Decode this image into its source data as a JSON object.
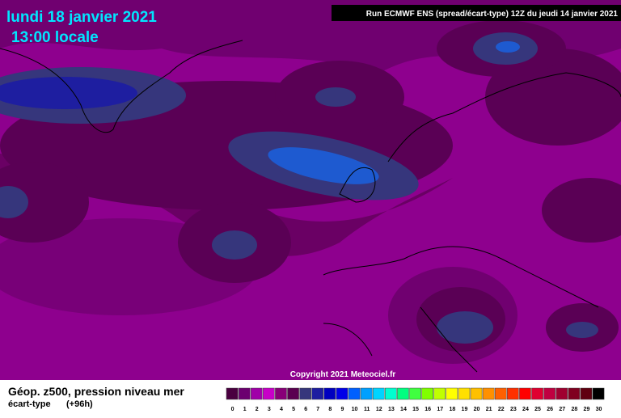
{
  "header": {
    "date": "lundi 18 janvier 2021",
    "time": "13:00 locale",
    "run": "Run ECMWF ENS (spread/écart-type) 12Z du jeudi 14 janvier 2021"
  },
  "copyright": "Copyright 2021 Meteociel.fr",
  "footer": {
    "title": "Géop. z500, pression niveau mer",
    "subtitle": "écart-type",
    "lead": "(+96h)"
  },
  "scale": {
    "labels": [
      "0",
      "1",
      "2",
      "3",
      "4",
      "5",
      "6",
      "7",
      "8",
      "9",
      "10",
      "11",
      "12",
      "13",
      "14",
      "15",
      "16",
      "17",
      "18",
      "19",
      "20",
      "21",
      "22",
      "23",
      "24",
      "25",
      "26",
      "27",
      "28",
      "29",
      "30"
    ],
    "colors": [
      "#4a0040",
      "#6c0070",
      "#a000a8",
      "#c800c8",
      "#880078",
      "#5a0050",
      "#36367c",
      "#1e1ea0",
      "#0000c0",
      "#0000e8",
      "#0060ff",
      "#00a0ff",
      "#00d4ff",
      "#00ffd0",
      "#00ff80",
      "#40ff40",
      "#80ff00",
      "#c0ff00",
      "#ffff00",
      "#ffe000",
      "#ffc000",
      "#ff9000",
      "#ff6000",
      "#ff3000",
      "#ff0000",
      "#e00030",
      "#c00040",
      "#a00030",
      "#800020",
      "#600010",
      "#000000"
    ]
  }
}
